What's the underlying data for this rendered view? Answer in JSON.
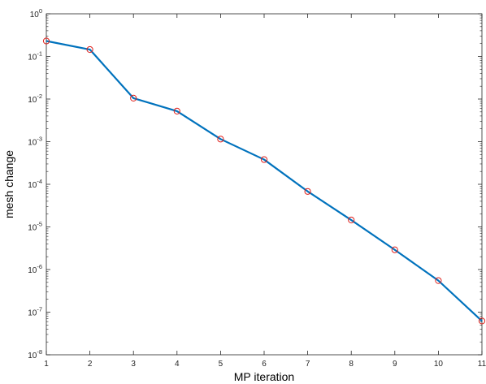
{
  "chart_data": {
    "type": "line",
    "title": "",
    "xlabel": "MP iteration",
    "ylabel": "mesh change",
    "y_scale": "log",
    "xlim": [
      1,
      11
    ],
    "ylim": [
      1e-08,
      1
    ],
    "x_ticks": [
      1,
      2,
      3,
      4,
      5,
      6,
      7,
      8,
      9,
      10,
      11
    ],
    "x_tick_labels": [
      "1",
      "2",
      "3",
      "4",
      "5",
      "6",
      "7",
      "8",
      "9",
      "10",
      "11"
    ],
    "y_ticks": [
      1e-08,
      1e-07,
      1e-06,
      1e-05,
      0.0001,
      0.001,
      0.01,
      0.1,
      1
    ],
    "y_tick_labels": [
      {
        "base": "10",
        "exp": "-8"
      },
      {
        "base": "10",
        "exp": "-7"
      },
      {
        "base": "10",
        "exp": "-6"
      },
      {
        "base": "10",
        "exp": "-5"
      },
      {
        "base": "10",
        "exp": "-4"
      },
      {
        "base": "10",
        "exp": "-3"
      },
      {
        "base": "10",
        "exp": "-2"
      },
      {
        "base": "10",
        "exp": "-1"
      },
      {
        "base": "10",
        "exp": "0"
      }
    ],
    "grid": false,
    "legend": false,
    "series": [
      {
        "x": [
          1,
          2,
          3,
          4,
          5,
          6,
          7,
          8,
          9,
          10,
          11
        ],
        "y": [
          0.23,
          0.145,
          0.0105,
          0.0052,
          0.00115,
          0.00038,
          6.8e-05,
          1.45e-05,
          2.9e-06,
          5.5e-07,
          6.2e-08
        ],
        "line_color": "#0072BD",
        "marker": "circle",
        "marker_color": "#E0201B"
      }
    ]
  }
}
